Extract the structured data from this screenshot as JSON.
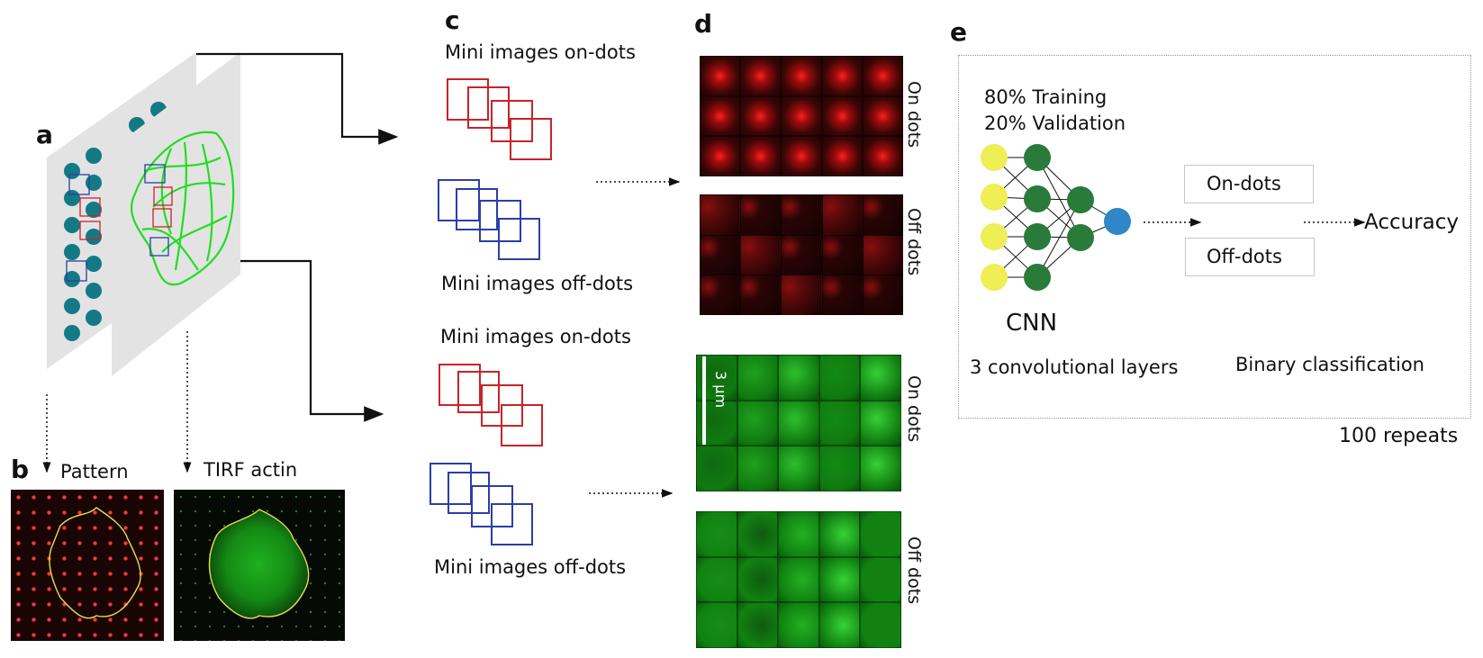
{
  "panels": {
    "a": "a",
    "b": "b",
    "c": "c",
    "d": "d",
    "e": "e"
  },
  "b_labels": {
    "pattern": "Pattern",
    "tirf": "TIRF actin"
  },
  "c_labels": {
    "top_on": "Mini images on-dots",
    "top_off": "Mini images off-dots",
    "bottom_on": "Mini images on-dots",
    "bottom_off": "Mini images off-dots"
  },
  "d_labels": {
    "red_on": "On dots",
    "red_off": "Off dots",
    "green_on": "On dots",
    "green_off": "Off dots",
    "scale": "3 μm"
  },
  "e_labels": {
    "training": "80% Training",
    "validation": "20% Validation",
    "cnn": "CNN",
    "layers": "3 convolutional layers",
    "on_dots": "On-dots",
    "off_dots": "Off-dots",
    "accuracy": "Accuracy",
    "binary": "Binary classification",
    "repeats": "100 repeats"
  },
  "colors": {
    "pattern_dot": "#137a85",
    "sheet": "#e3e3e3",
    "actin": "#22dd22",
    "red_box": "#c8232a",
    "blue_box": "#2b3ea8",
    "input_node": "#eeee55",
    "hidden_node": "#2a7a3a",
    "output_node": "#2f86c8"
  }
}
